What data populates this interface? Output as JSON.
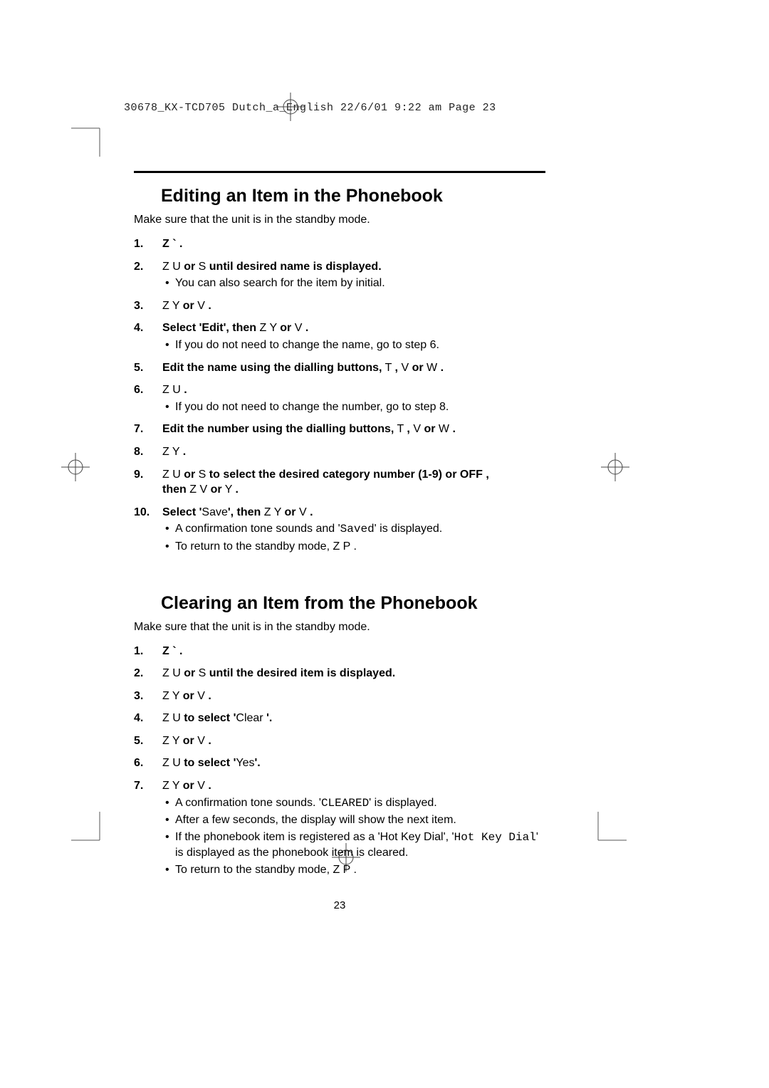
{
  "header": "30678_KX-TCD705 Dutch_a_English  22/6/01  9:22 am  Page 23",
  "page_number": "23",
  "section1": {
    "title": "Editing an Item in the Phonebook",
    "intro": "Make sure that the unit is in the standby mode.",
    "steps": [
      {
        "num": "1.",
        "main_b": "Z `     .",
        "sub": []
      },
      {
        "num": "2.",
        "main": "Z U      <b>or</b> S  <b>until desired name is displayed.</b>",
        "sub": [
          "You can also search for the item by initial."
        ]
      },
      {
        "num": "3.",
        "main": "Z Y      <b>or</b> V <b>.</b>",
        "sub": []
      },
      {
        "num": "4.",
        "main": "<b>Select 'Edit', then</b> Z Y      <b>or</b> V <b>.</b>",
        "sub": [
          "If you do not need to change the name, go to step 6."
        ]
      },
      {
        "num": "5.",
        "main": "<b>Edit the name using the dialling buttons,</b> T <b>,</b> V  <b>or</b> W   <b>.</b>",
        "sub": []
      },
      {
        "num": "6.",
        "main": "Z U     <b>.</b>",
        "sub": [
          "If you do not need to change the number, go to step 8."
        ]
      },
      {
        "num": "7.",
        "main": "<b>Edit the number using the dialling buttons,</b> T <b>,</b> V  <b>or</b> W   <b>.</b>",
        "sub": []
      },
      {
        "num": "8.",
        "main": "Z Y     <b>.</b>",
        "sub": []
      },
      {
        "num": "9.",
        "main": "Z U      <b>or</b> S  <b>to select the desired category number (1-9) or OFF ,</b><br><b>then</b> Z V      <b>or</b> Y <b>.</b>",
        "sub": []
      },
      {
        "num": "10.",
        "main": "<b>Select '</b>Save<b>', then</b> Z Y      <b>or</b> V <b>.</b>",
        "sub": [
          "A confirmation tone sounds and '<span class=\"mono\">Saved</span>' is displayed.",
          "To return to the standby mode, Z P     ."
        ]
      }
    ]
  },
  "section2": {
    "title": "Clearing an Item from the Phonebook",
    "intro": "Make sure that the unit is in the standby mode.",
    "steps": [
      {
        "num": "1.",
        "main_b": "Z `     .",
        "sub": []
      },
      {
        "num": "2.",
        "main": "Z U      <b>or</b> S  <b>until the desired item is displayed.</b>",
        "sub": []
      },
      {
        "num": "3.",
        "main": "Z Y      <b>or</b> V <b>.</b>",
        "sub": []
      },
      {
        "num": "4.",
        "main": "Z U      <b>to select '</b>Clear <b>'.</b>",
        "sub": []
      },
      {
        "num": "5.",
        "main": "Z Y      <b>or</b> V <b>.</b>",
        "sub": []
      },
      {
        "num": "6.",
        "main": "Z U      <b>to select '</b>Yes<b>'.</b>",
        "sub": []
      },
      {
        "num": "7.",
        "main": "Z Y      <b>or</b> V <b>.</b>",
        "sub": [
          "A confirmation tone sounds. '<span class=\"mono\">CLEARED</span>' is displayed.",
          "After a few seconds, the display will show the next item.",
          "If the phonebook item is registered as a 'Hot Key Dial', '<span class=\"mono\">Hot Key Dial</span>' is displayed as the phonebook item is cleared.",
          "To return to the standby mode, Z P     ."
        ]
      }
    ]
  }
}
